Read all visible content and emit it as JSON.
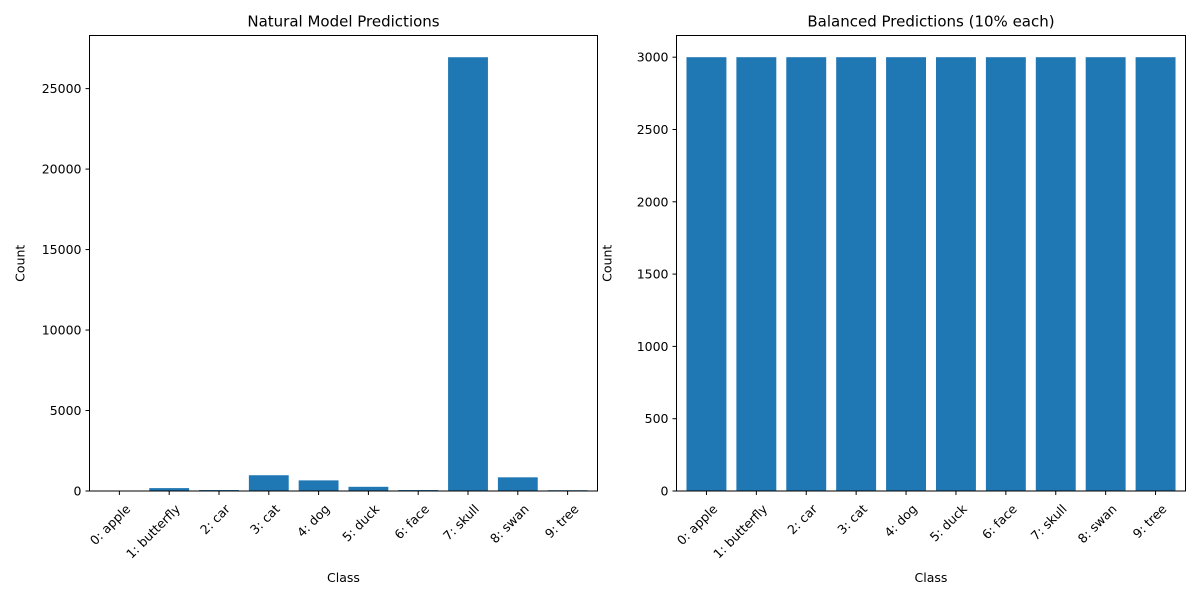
{
  "chart_data": [
    {
      "type": "bar",
      "title": "Natural Model Predictions",
      "xlabel": "Class",
      "ylabel": "Count",
      "categories": [
        "0: apple",
        "1: butterfly",
        "2: car",
        "3: cat",
        "4: dog",
        "5: duck",
        "6: face",
        "7: skull",
        "8: swan",
        "9: tree"
      ],
      "values": [
        10,
        180,
        60,
        980,
        660,
        260,
        60,
        26950,
        850,
        50
      ],
      "yticks": [
        0,
        5000,
        10000,
        15000,
        20000,
        25000
      ],
      "ylim": [
        0,
        28300
      ],
      "color": "#1f77b4",
      "grid": false
    },
    {
      "type": "bar",
      "title": "Balanced Predictions (10% each)",
      "xlabel": "Class",
      "ylabel": "Count",
      "categories": [
        "0: apple",
        "1: butterfly",
        "2: car",
        "3: cat",
        "4: dog",
        "5: duck",
        "6: face",
        "7: skull",
        "8: swan",
        "9: tree"
      ],
      "values": [
        3000,
        3000,
        3000,
        3000,
        3000,
        3000,
        3000,
        3000,
        3000,
        3000
      ],
      "yticks": [
        0,
        500,
        1000,
        1500,
        2000,
        2500,
        3000
      ],
      "ylim": [
        0,
        3150
      ],
      "color": "#1f77b4",
      "grid": false
    }
  ]
}
